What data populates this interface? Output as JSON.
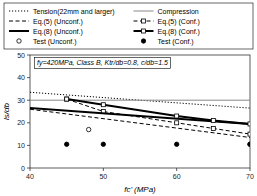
{
  "chart_data": {
    "type": "line",
    "xlabel": "fc’ (MPa)",
    "ylabel": "ls/db",
    "annotation": "fy=420MPa, Class B, Ktr/db=0.8, c/db=1.5",
    "xlim": [
      40,
      70
    ],
    "ylim": [
      0,
      50
    ],
    "xticks": [
      40,
      50,
      60,
      70
    ],
    "yticks": [
      0,
      10,
      20,
      30,
      40,
      50
    ],
    "grid": false,
    "legend": "top",
    "series": [
      {
        "name": "Tension(22mm and larger)",
        "type": "line",
        "color": "#000000",
        "line_style": "dotted",
        "x": [
          40,
          70
        ],
        "values": [
          33.5,
          26.5
        ]
      },
      {
        "name": "Compression",
        "type": "hline",
        "color": "#888888",
        "line_style": "solid",
        "values": [
          30.0
        ]
      },
      {
        "name": "Eq.(5) (Unconf.)",
        "type": "line",
        "color": "#000000",
        "line_style": "dashed",
        "x": [
          40,
          70
        ],
        "values": [
          26.0,
          13.5
        ]
      },
      {
        "name": "Eq.(5) (Conf.)",
        "type": "line",
        "color": "#000000",
        "line_style": "dashed",
        "marker": "square-open",
        "x": [
          45,
          50,
          60,
          65,
          70
        ],
        "values": [
          30.5,
          25.0,
          20.0,
          17.5,
          15.0
        ]
      },
      {
        "name": "Eq.(8) (Unconf.)",
        "type": "line",
        "color": "#000000",
        "line_style": "thick",
        "x": [
          40,
          70
        ],
        "values": [
          26.5,
          19.5
        ]
      },
      {
        "name": "Eq.(8) (Conf.)",
        "type": "line",
        "color": "#000000",
        "line_style": "thick",
        "marker": "square-open",
        "x": [
          45,
          50,
          60,
          65,
          70
        ],
        "values": [
          30.5,
          28.0,
          23.0,
          21.0,
          19.5
        ]
      },
      {
        "name": "Test (Unconf.)",
        "type": "scatter",
        "color": "#000000",
        "marker": "circle-open",
        "x": [
          48,
          70
        ],
        "values": [
          17.0,
          10.5
        ]
      },
      {
        "name": "Test (Conf.)",
        "type": "scatter",
        "color": "#000000",
        "marker": "circle",
        "x": [
          45,
          50,
          60,
          70
        ],
        "values": [
          10.5,
          10.5,
          10.5,
          10.5
        ]
      }
    ]
  }
}
